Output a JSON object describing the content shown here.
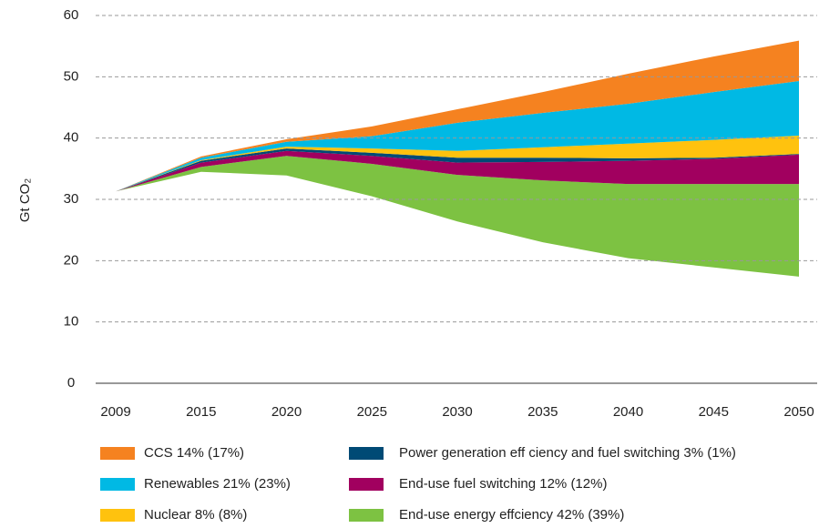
{
  "chart_data": {
    "type": "stacked_area",
    "y_label": "Gt CO₂",
    "categories": [
      "2009",
      "2015",
      "2020",
      "2025",
      "2030",
      "2035",
      "2040",
      "2045",
      "2050"
    ],
    "series": [
      {
        "name": "CCS 14% (17%)",
        "color": "#f58220",
        "values": [
          0,
          0.2,
          0.4,
          1.6,
          2.2,
          3.4,
          4.9,
          5.8,
          6.6
        ]
      },
      {
        "name": "Renewables 21% (23%)",
        "color": "#00b9e4",
        "values": [
          0,
          0.4,
          0.8,
          2.0,
          4.6,
          5.6,
          6.5,
          7.8,
          8.9
        ]
      },
      {
        "name": "Nuclear 8% (8%)",
        "color": "#ffc20e",
        "values": [
          0,
          0.1,
          0.3,
          0.7,
          1.1,
          1.7,
          2.4,
          2.9,
          3.0
        ]
      },
      {
        "name": "Power generation eff ciency and fuel switching 3% (1%)",
        "color": "#004a75",
        "values": [
          0,
          0.3,
          0.4,
          0.5,
          0.8,
          0.7,
          0.4,
          0.2,
          0.1
        ]
      },
      {
        "name": "End-use fuel switching 12% (12%)",
        "color": "#a1005f",
        "values": [
          0,
          0.7,
          0.8,
          1.3,
          2.0,
          3.0,
          3.8,
          4.1,
          4.8
        ]
      },
      {
        "name": "End-use energy effciency 42% (39%)",
        "color": "#7dc242",
        "values": [
          0,
          0.8,
          3.2,
          5.3,
          7.6,
          10.1,
          12.1,
          13.6,
          15.1
        ]
      },
      {
        "color": "#ffffff",
        "values": [
          31.3,
          34.5,
          33.9,
          30.5,
          26.4,
          23.0,
          20.4,
          18.9,
          17.4
        ]
      }
    ],
    "ylim": [
      0,
      60
    ],
    "yticks": [
      0,
      10,
      20,
      30,
      40,
      50,
      60
    ],
    "grid": true
  }
}
